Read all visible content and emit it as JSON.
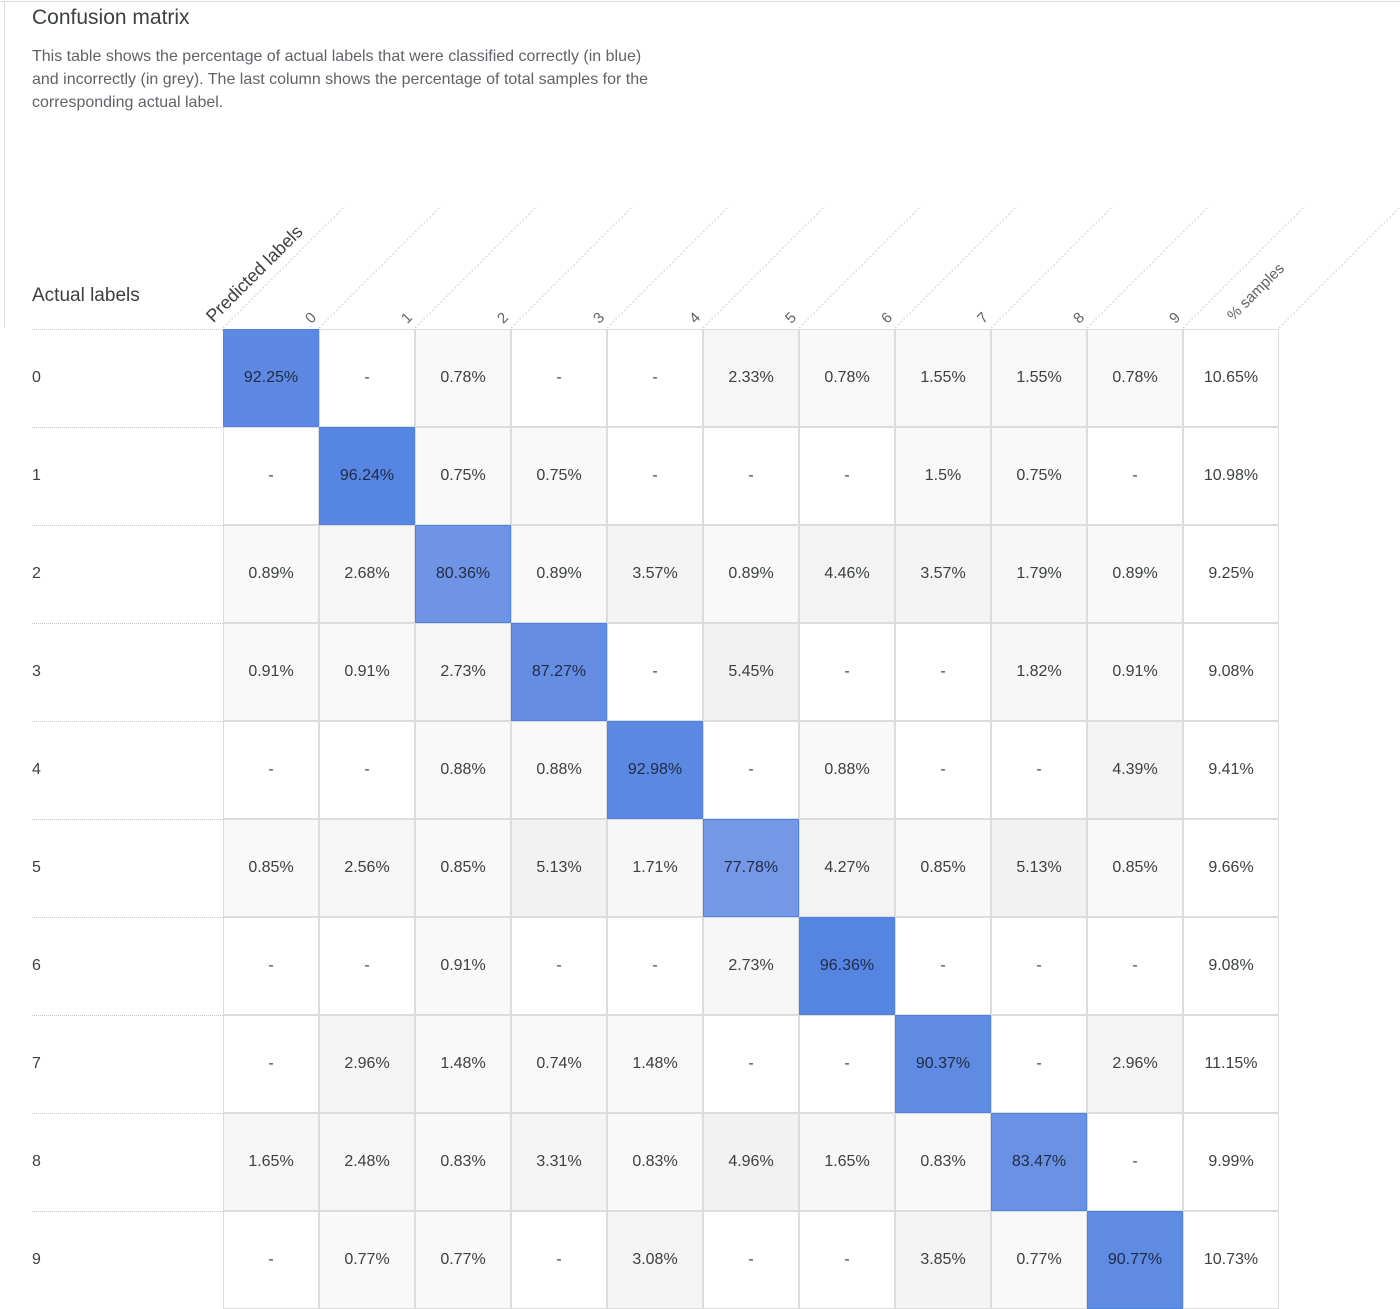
{
  "header": {
    "title": "Confusion matrix",
    "description": "This table shows the percentage of actual labels that were classified correctly (in blue) and incorrectly (in grey). The last column shows the percentage of total samples for the corresponding actual label."
  },
  "axes": {
    "actual_label": "Actual labels",
    "predicted_label": "Predicted labels"
  },
  "colors": {
    "correct": "#5082e0",
    "incorrect": "#f3f3f3",
    "border": "#dcdcdc"
  },
  "chart_data": {
    "type": "table",
    "column_headers": [
      "0",
      "1",
      "2",
      "3",
      "4",
      "5",
      "6",
      "7",
      "8",
      "9",
      "% samples"
    ],
    "rows": [
      {
        "label": "0",
        "cells": [
          "92.25%",
          "-",
          "0.78%",
          "-",
          "-",
          "2.33%",
          "0.78%",
          "1.55%",
          "1.55%",
          "0.78%",
          "10.65%"
        ]
      },
      {
        "label": "1",
        "cells": [
          "-",
          "96.24%",
          "0.75%",
          "0.75%",
          "-",
          "-",
          "-",
          "1.5%",
          "0.75%",
          "-",
          "10.98%"
        ]
      },
      {
        "label": "2",
        "cells": [
          "0.89%",
          "2.68%",
          "80.36%",
          "0.89%",
          "3.57%",
          "0.89%",
          "4.46%",
          "3.57%",
          "1.79%",
          "0.89%",
          "9.25%"
        ]
      },
      {
        "label": "3",
        "cells": [
          "0.91%",
          "0.91%",
          "2.73%",
          "87.27%",
          "-",
          "5.45%",
          "-",
          "-",
          "1.82%",
          "0.91%",
          "9.08%"
        ]
      },
      {
        "label": "4",
        "cells": [
          "-",
          "-",
          "0.88%",
          "0.88%",
          "92.98%",
          "-",
          "0.88%",
          "-",
          "-",
          "4.39%",
          "9.41%"
        ]
      },
      {
        "label": "5",
        "cells": [
          "0.85%",
          "2.56%",
          "0.85%",
          "5.13%",
          "1.71%",
          "77.78%",
          "4.27%",
          "0.85%",
          "5.13%",
          "0.85%",
          "9.66%"
        ]
      },
      {
        "label": "6",
        "cells": [
          "-",
          "-",
          "0.91%",
          "-",
          "-",
          "2.73%",
          "96.36%",
          "-",
          "-",
          "-",
          "9.08%"
        ]
      },
      {
        "label": "7",
        "cells": [
          "-",
          "2.96%",
          "1.48%",
          "0.74%",
          "1.48%",
          "-",
          "-",
          "90.37%",
          "-",
          "2.96%",
          "11.15%"
        ]
      },
      {
        "label": "8",
        "cells": [
          "1.65%",
          "2.48%",
          "0.83%",
          "3.31%",
          "0.83%",
          "4.96%",
          "1.65%",
          "0.83%",
          "83.47%",
          "-",
          "9.99%"
        ]
      },
      {
        "label": "9",
        "cells": [
          "-",
          "0.77%",
          "0.77%",
          "-",
          "3.08%",
          "-",
          "-",
          "3.85%",
          "0.77%",
          "90.77%",
          "10.73%"
        ]
      }
    ]
  }
}
